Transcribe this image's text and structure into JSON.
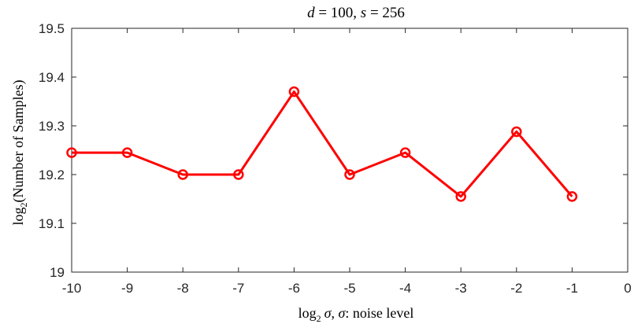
{
  "chart_data": {
    "type": "line",
    "title": {
      "d_sym": "d",
      "d_val": " = 100, ",
      "s_sym": "s",
      "s_val": " = 256"
    },
    "xlabel": {
      "log": "log",
      "base": "2",
      "sym1": "σ",
      "mid": ", ",
      "sym2": "σ",
      "tail": ": noise level"
    },
    "ylabel": {
      "log": "log",
      "base": "2",
      "text": "(Number of Samples)"
    },
    "xlim": [
      -10,
      0
    ],
    "ylim": [
      19,
      19.5
    ],
    "xticks": [
      -10,
      -9,
      -8,
      -7,
      -6,
      -5,
      -4,
      -3,
      -2,
      -1,
      0
    ],
    "xtick_labels": [
      "-10",
      "-9",
      "-8",
      "-7",
      "-6",
      "-5",
      "-4",
      "-3",
      "-2",
      "-1",
      "0"
    ],
    "yticks": [
      19,
      19.1,
      19.2,
      19.3,
      19.4,
      19.5
    ],
    "ytick_labels": [
      "19",
      "19.1",
      "19.2",
      "19.3",
      "19.4",
      "19.5"
    ],
    "grid": false,
    "series": [
      {
        "color": "#ff0000",
        "marker": "circle",
        "x": [
          -10,
          -9,
          -8,
          -7,
          -6,
          -5,
          -4,
          -3,
          -2,
          -1
        ],
        "y": [
          19.245,
          19.245,
          19.2,
          19.2,
          19.37,
          19.2,
          19.245,
          19.155,
          19.288,
          19.155
        ]
      }
    ]
  }
}
